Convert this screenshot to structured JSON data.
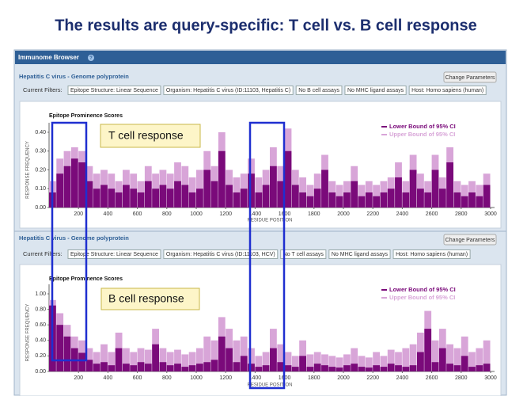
{
  "slide_title": "The results are query-specific: T cell vs. B cell response",
  "panels": [
    {
      "app_title": "Immunome Browser",
      "help_icon": "?",
      "subtitle": "Hepatitis C virus - Genome polyprotein",
      "button": "Change Parameters",
      "filters_label": "Current Filters:",
      "filters": [
        "Epitope Structure: Linear Sequence",
        "Organism: Hepatitis C virus (ID:11103, Hepatitis C)",
        "No B cell assays",
        "No MHC ligand assays",
        "Host: Homo sapiens (human)"
      ]
    },
    {
      "subtitle": "Hepatitis C virus - Genome polyprotein",
      "button": "Change Parameters",
      "filters_label": "Current Filters:",
      "filters": [
        "Epitope Structure: Linear Sequence",
        "Organism: Hepatitis C virus (ID:11103, HCV)",
        "No T cell assays",
        "No MHC ligand assays",
        "Host: Homo sapiens (human)"
      ]
    }
  ],
  "callouts": [
    "T cell response",
    "B cell response"
  ],
  "chart_data": [
    {
      "type": "bar",
      "title": "Epitope Prominence Scores",
      "xlabel": "RESIDUE POSITION",
      "ylabel": "RESPONSE FREQUENCY",
      "x": [
        0,
        50,
        100,
        150,
        200,
        250,
        300,
        350,
        400,
        450,
        500,
        550,
        600,
        650,
        700,
        750,
        800,
        850,
        900,
        950,
        1000,
        1050,
        1100,
        1150,
        1200,
        1250,
        1300,
        1350,
        1400,
        1450,
        1500,
        1550,
        1600,
        1650,
        1700,
        1750,
        1800,
        1850,
        1900,
        1950,
        2000,
        2050,
        2100,
        2150,
        2200,
        2250,
        2300,
        2350,
        2400,
        2450,
        2500,
        2550,
        2600,
        2650,
        2700,
        2750,
        2800,
        2850,
        2900,
        2950
      ],
      "series": [
        {
          "name": "Upper Bound of 95% CI",
          "color": "#d8a5d8",
          "values": [
            0.14,
            0.26,
            0.3,
            0.32,
            0.3,
            0.22,
            0.18,
            0.2,
            0.18,
            0.14,
            0.2,
            0.18,
            0.14,
            0.22,
            0.18,
            0.2,
            0.18,
            0.24,
            0.22,
            0.16,
            0.2,
            0.3,
            0.22,
            0.4,
            0.2,
            0.16,
            0.18,
            0.26,
            0.16,
            0.2,
            0.32,
            0.22,
            0.42,
            0.2,
            0.16,
            0.12,
            0.18,
            0.28,
            0.14,
            0.12,
            0.14,
            0.22,
            0.12,
            0.14,
            0.12,
            0.14,
            0.16,
            0.24,
            0.14,
            0.28,
            0.18,
            0.14,
            0.28,
            0.16,
            0.32,
            0.14,
            0.12,
            0.14,
            0.12,
            0.18
          ]
        },
        {
          "name": "Lower Bound of 95% CI",
          "color": "#7a0a7a",
          "values": [
            0.08,
            0.18,
            0.22,
            0.26,
            0.24,
            0.14,
            0.1,
            0.12,
            0.1,
            0.08,
            0.12,
            0.1,
            0.08,
            0.14,
            0.1,
            0.12,
            0.1,
            0.14,
            0.12,
            0.08,
            0.1,
            0.2,
            0.14,
            0.3,
            0.12,
            0.08,
            0.1,
            0.18,
            0.08,
            0.12,
            0.22,
            0.14,
            0.3,
            0.12,
            0.08,
            0.06,
            0.1,
            0.2,
            0.08,
            0.06,
            0.08,
            0.14,
            0.06,
            0.08,
            0.06,
            0.08,
            0.1,
            0.16,
            0.08,
            0.2,
            0.1,
            0.08,
            0.2,
            0.1,
            0.24,
            0.08,
            0.06,
            0.08,
            0.06,
            0.12
          ]
        }
      ],
      "xlim": [
        0,
        3000
      ],
      "xticks": [
        200,
        400,
        600,
        800,
        1000,
        1200,
        1400,
        1600,
        1800,
        2000,
        2200,
        2400,
        2600,
        2800,
        3000
      ],
      "ylim": [
        0,
        0.4
      ],
      "yticks": [
        {
          "value": 0,
          "label": "0.00"
        },
        {
          "value": 0.1,
          "label": "0.10"
        },
        {
          "value": 0.2,
          "label": "0.20"
        },
        {
          "value": 0.3,
          "label": "0.30"
        },
        {
          "value": 0.4,
          "label": "0.40"
        }
      ],
      "legend": "top-right"
    },
    {
      "type": "bar",
      "title": "Epitope Prominence Scores",
      "xlabel": "RESIDUE POSITION",
      "ylabel": "RESPONSE FREQUENCY",
      "x": [
        0,
        50,
        100,
        150,
        200,
        250,
        300,
        350,
        400,
        450,
        500,
        550,
        600,
        650,
        700,
        750,
        800,
        850,
        900,
        950,
        1000,
        1050,
        1100,
        1150,
        1200,
        1250,
        1300,
        1350,
        1400,
        1450,
        1500,
        1550,
        1600,
        1650,
        1700,
        1750,
        1800,
        1850,
        1900,
        1950,
        2000,
        2050,
        2100,
        2150,
        2200,
        2250,
        2300,
        2350,
        2400,
        2450,
        2500,
        2550,
        2600,
        2650,
        2700,
        2750,
        2800,
        2850,
        2900,
        2950
      ],
      "series": [
        {
          "name": "Upper Bound of 95% CI",
          "color": "#d8a5d8",
          "values": [
            0.92,
            0.75,
            0.6,
            0.45,
            0.4,
            0.3,
            0.25,
            0.35,
            0.25,
            0.5,
            0.3,
            0.25,
            0.3,
            0.28,
            0.55,
            0.3,
            0.25,
            0.28,
            0.22,
            0.25,
            0.3,
            0.45,
            0.4,
            0.7,
            0.55,
            0.4,
            0.45,
            0.3,
            0.2,
            0.25,
            0.55,
            0.35,
            0.25,
            0.2,
            0.4,
            0.22,
            0.25,
            0.22,
            0.2,
            0.18,
            0.22,
            0.3,
            0.2,
            0.18,
            0.25,
            0.2,
            0.28,
            0.25,
            0.3,
            0.35,
            0.5,
            0.78,
            0.4,
            0.55,
            0.35,
            0.3,
            0.45,
            0.25,
            0.3,
            0.4
          ]
        },
        {
          "name": "Lower Bound of 95% CI",
          "color": "#7a0a7a",
          "values": [
            0.85,
            0.6,
            0.45,
            0.3,
            0.24,
            0.15,
            0.1,
            0.12,
            0.08,
            0.3,
            0.1,
            0.08,
            0.12,
            0.1,
            0.35,
            0.12,
            0.08,
            0.1,
            0.06,
            0.08,
            0.1,
            0.12,
            0.15,
            0.45,
            0.3,
            0.12,
            0.2,
            0.1,
            0.06,
            0.08,
            0.3,
            0.12,
            0.08,
            0.06,
            0.2,
            0.06,
            0.1,
            0.08,
            0.06,
            0.05,
            0.08,
            0.1,
            0.06,
            0.05,
            0.08,
            0.06,
            0.1,
            0.08,
            0.06,
            0.08,
            0.25,
            0.55,
            0.12,
            0.3,
            0.1,
            0.08,
            0.2,
            0.06,
            0.08,
            0.1
          ]
        }
      ],
      "xlim": [
        0,
        3000
      ],
      "xticks": [
        200,
        400,
        600,
        800,
        1000,
        1200,
        1400,
        1600,
        1800,
        2000,
        2200,
        2400,
        2600,
        2800,
        3000
      ],
      "ylim": [
        0,
        1
      ],
      "yticks": [
        {
          "value": 0,
          "label": "0.00"
        },
        {
          "value": 0.2,
          "label": "0.20"
        },
        {
          "value": 0.4,
          "label": "0.40"
        },
        {
          "value": 0.6,
          "label": "0.60"
        },
        {
          "value": 0.8,
          "label": "0.80"
        },
        {
          "value": 1,
          "label": "1.00"
        }
      ],
      "legend": "top-right"
    }
  ]
}
